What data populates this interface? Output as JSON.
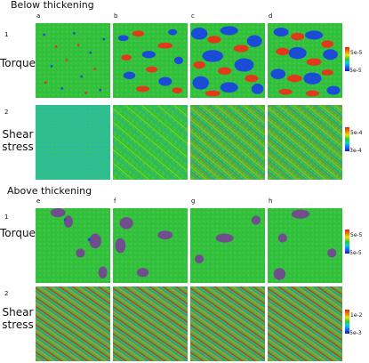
{
  "sections": {
    "below": {
      "title": "Below thickening",
      "letters": [
        "a",
        "b",
        "c",
        "d"
      ]
    },
    "above": {
      "title": "Above thickening",
      "letters": [
        "e",
        "f",
        "g",
        "h"
      ]
    }
  },
  "rows": {
    "torque": {
      "num": "1",
      "label": "Torque"
    },
    "shear": {
      "num": "2",
      "label_line1": "Shear",
      "label_line2": "stress"
    }
  },
  "colorbars": {
    "below_torque": {
      "top": "5e-5",
      "bottom": "-5e-5"
    },
    "below_shear": {
      "top": "5e-4",
      "bottom": "-3e-4"
    },
    "above_torque": {
      "top": "5e-5",
      "bottom": "-5e-5"
    },
    "above_shear": {
      "top": "1e-2",
      "bottom": "-5e-3"
    }
  },
  "colors": {
    "background_field": "#33c13a",
    "high": "#e03a1a",
    "low": "#1a4cd8",
    "mid": "#21c4c4",
    "purple": "#7a3a9a"
  }
}
